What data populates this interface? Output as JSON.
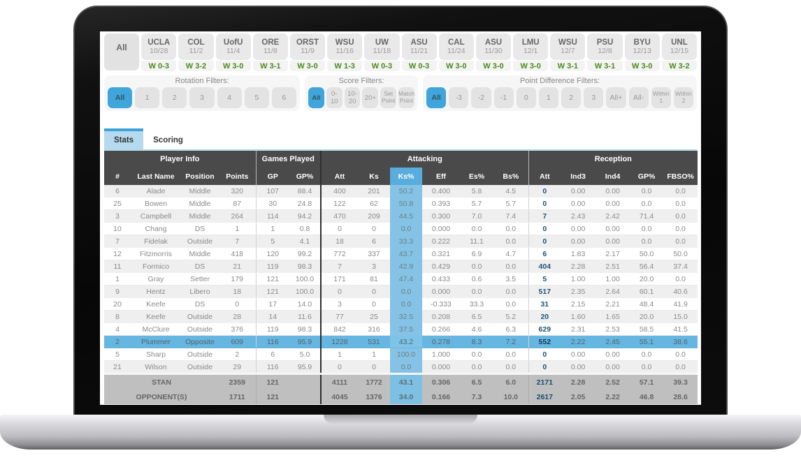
{
  "game_tabs": {
    "all_label": "All",
    "games": [
      {
        "team": "UCLA",
        "date": "10/28",
        "result": "W 0-3"
      },
      {
        "team": "COL",
        "date": "11/2",
        "result": "W 3-2"
      },
      {
        "team": "UofU",
        "date": "11/4",
        "result": "W 3-0"
      },
      {
        "team": "ORE",
        "date": "11/8",
        "result": "W 3-1"
      },
      {
        "team": "ORST",
        "date": "11/9",
        "result": "W 3-0"
      },
      {
        "team": "WSU",
        "date": "11/16",
        "result": "W 1-3"
      },
      {
        "team": "UW",
        "date": "11/18",
        "result": "W 0-3"
      },
      {
        "team": "ASU",
        "date": "11/21",
        "result": "W 0-3"
      },
      {
        "team": "CAL",
        "date": "11/24",
        "result": "W 3-0"
      },
      {
        "team": "ASU",
        "date": "11/30",
        "result": "W 3-0"
      },
      {
        "team": "LMU",
        "date": "12/1",
        "result": "W 3-0"
      },
      {
        "team": "WSU",
        "date": "12/7",
        "result": "W 3-1"
      },
      {
        "team": "PSU",
        "date": "12/8",
        "result": "W 3-1"
      },
      {
        "team": "BYU",
        "date": "12/13",
        "result": "W 3-0"
      },
      {
        "team": "UNL",
        "date": "12/15",
        "result": "W 3-2"
      }
    ]
  },
  "filters": {
    "rotation": {
      "label": "Rotation Filters:",
      "selected": "All",
      "options": [
        "All",
        "1",
        "2",
        "3",
        "4",
        "5",
        "6"
      ]
    },
    "score": {
      "label": "Score Filters:",
      "selected": "All",
      "options": [
        "All",
        "0-10",
        "10-20",
        "20+",
        "Set Point",
        "Match Point"
      ]
    },
    "point_difference": {
      "label": "Point Difference Filters:",
      "selected": "All",
      "options": [
        "All",
        "-3",
        "-2",
        "-1",
        "0",
        "1",
        "2",
        "3",
        "All+",
        "All-",
        "Within 1",
        "Within 2"
      ]
    }
  },
  "stat_tabs": [
    {
      "label": "Stats",
      "active": true
    },
    {
      "label": "Scoring",
      "active": false
    }
  ],
  "table": {
    "group_headers": [
      {
        "label": "Player Info"
      },
      {
        "label": "Games Played"
      },
      {
        "label": "Attacking"
      },
      {
        "label": "Reception"
      }
    ],
    "columns": [
      "#",
      "Last Name",
      "Position",
      "Points",
      "GP",
      "GP%",
      "Att",
      "Ks",
      "Ks%",
      "Eff",
      "Es%",
      "Bs%",
      "Att",
      "Ind3",
      "Ind4",
      "GP%",
      "FBSO%"
    ],
    "selected_column": "Ks%",
    "selected_player": "Plummer",
    "rows": [
      {
        "number": "6",
        "last_name": "Alade",
        "position": "Middle",
        "points": "320",
        "gp": "107",
        "gp_pct": "88.4",
        "attacking": [
          "400",
          "201",
          "50.2",
          "0.400",
          "5.8",
          "4.5"
        ],
        "reception": [
          "0",
          "0.00",
          "0.00",
          "0.0",
          "0.0"
        ],
        "highlighted": false
      },
      {
        "number": "25",
        "last_name": "Bowen",
        "position": "Middle",
        "points": "87",
        "gp": "30",
        "gp_pct": "24.8",
        "attacking": [
          "122",
          "62",
          "50.8",
          "0.393",
          "5.7",
          "5.7"
        ],
        "reception": [
          "0",
          "0.00",
          "0.00",
          "0.0",
          "0.0"
        ],
        "highlighted": false
      },
      {
        "number": "3",
        "last_name": "Campbell",
        "position": "Middle",
        "points": "264",
        "gp": "114",
        "gp_pct": "94.2",
        "attacking": [
          "470",
          "209",
          "44.5",
          "0.300",
          "7.0",
          "7.4"
        ],
        "reception": [
          "7",
          "2.43",
          "2.42",
          "71.4",
          "0.0"
        ],
        "highlighted": false
      },
      {
        "number": "10",
        "last_name": "Chang",
        "position": "DS",
        "points": "1",
        "gp": "1",
        "gp_pct": "0.8",
        "attacking": [
          "0",
          "0",
          "0.0",
          "0.000",
          "0.0",
          "0.0"
        ],
        "reception": [
          "0",
          "0.00",
          "0.00",
          "0.0",
          "0.0"
        ],
        "highlighted": false
      },
      {
        "number": "7",
        "last_name": "Fidelak",
        "position": "Outside",
        "points": "7",
        "gp": "5",
        "gp_pct": "4.1",
        "attacking": [
          "18",
          "6",
          "33.3",
          "0.222",
          "11.1",
          "0.0"
        ],
        "reception": [
          "0",
          "0.00",
          "0.00",
          "0.0",
          "0.0"
        ],
        "highlighted": false
      },
      {
        "number": "12",
        "last_name": "Fitzmorris",
        "position": "Middle",
        "points": "418",
        "gp": "120",
        "gp_pct": "99.2",
        "attacking": [
          "772",
          "337",
          "43.7",
          "0.321",
          "6.9",
          "4.7"
        ],
        "reception": [
          "6",
          "1.83",
          "2.17",
          "50.0",
          "50.0"
        ],
        "highlighted": false
      },
      {
        "number": "11",
        "last_name": "Formico",
        "position": "DS",
        "points": "21",
        "gp": "119",
        "gp_pct": "98.3",
        "attacking": [
          "7",
          "3",
          "42.9",
          "0.429",
          "0.0",
          "0.0"
        ],
        "reception": [
          "404",
          "2.28",
          "2.51",
          "56.4",
          "37.4"
        ],
        "highlighted": false
      },
      {
        "number": "1",
        "last_name": "Gray",
        "position": "Setter",
        "points": "179",
        "gp": "121",
        "gp_pct": "100.0",
        "attacking": [
          "171",
          "81",
          "47.4",
          "0.433",
          "0.6",
          "3.5"
        ],
        "reception": [
          "5",
          "1.00",
          "1.00",
          "20.0",
          "0.0"
        ],
        "highlighted": false
      },
      {
        "number": "9",
        "last_name": "Hentz",
        "position": "Libero",
        "points": "18",
        "gp": "121",
        "gp_pct": "100.0",
        "attacking": [
          "0",
          "0",
          "0.0",
          "0.000",
          "0.0",
          "0.0"
        ],
        "reception": [
          "517",
          "2.35",
          "2.64",
          "60.1",
          "40.6"
        ],
        "highlighted": false
      },
      {
        "number": "20",
        "last_name": "Keefe",
        "position": "DS",
        "points": "0",
        "gp": "17",
        "gp_pct": "14.0",
        "attacking": [
          "3",
          "0",
          "0.0",
          "-0.333",
          "33.3",
          "0.0"
        ],
        "reception": [
          "31",
          "2.15",
          "2.21",
          "48.4",
          "41.9"
        ],
        "highlighted": false
      },
      {
        "number": "8",
        "last_name": "Keefe",
        "position": "Outside",
        "points": "28",
        "gp": "14",
        "gp_pct": "11.6",
        "attacking": [
          "77",
          "25",
          "32.5",
          "0.208",
          "6.5",
          "5.2"
        ],
        "reception": [
          "20",
          "1.60",
          "1.65",
          "20.0",
          "15.0"
        ],
        "highlighted": false
      },
      {
        "number": "4",
        "last_name": "McClure",
        "position": "Outside",
        "points": "376",
        "gp": "119",
        "gp_pct": "98.3",
        "attacking": [
          "842",
          "316",
          "37.5",
          "0.266",
          "4.6",
          "6.3"
        ],
        "reception": [
          "629",
          "2.31",
          "2.53",
          "58.5",
          "41.5"
        ],
        "highlighted": false
      },
      {
        "number": "2",
        "last_name": "Plummer",
        "position": "Opposite",
        "points": "609",
        "gp": "116",
        "gp_pct": "95.9",
        "attacking": [
          "1228",
          "531",
          "43.2",
          "0.278",
          "8.3",
          "7.2"
        ],
        "reception": [
          "552",
          "2.22",
          "2.45",
          "55.1",
          "38.6"
        ],
        "highlighted": true
      },
      {
        "number": "5",
        "last_name": "Sharp",
        "position": "Outside",
        "points": "2",
        "gp": "6",
        "gp_pct": "5.0",
        "attacking": [
          "1",
          "1",
          "100.0",
          "1.000",
          "0.0",
          "0.0"
        ],
        "reception": [
          "0",
          "0.00",
          "0.00",
          "0.0",
          "0.0"
        ],
        "highlighted": false
      },
      {
        "number": "21",
        "last_name": "Wilson",
        "position": "Outside",
        "points": "29",
        "gp": "116",
        "gp_pct": "95.9",
        "attacking": [
          "0",
          "0",
          "0.0",
          "0.000",
          "0.0",
          "0.0"
        ],
        "reception": [
          "0",
          "0.00",
          "0.00",
          "0.0",
          "0.0"
        ],
        "highlighted": false
      }
    ],
    "totals": [
      {
        "label": "STAN",
        "points": "2359",
        "gp": "121",
        "gp_pct": "",
        "attacking": [
          "4111",
          "1772",
          "43.1",
          "0.306",
          "6.5",
          "6.0"
        ],
        "reception": [
          "2171",
          "2.28",
          "2.52",
          "57.1",
          "39.3"
        ]
      },
      {
        "label": "OPPONENT(S)",
        "points": "1711",
        "gp": "121",
        "gp_pct": "",
        "attacking": [
          "4045",
          "1376",
          "34.0",
          "0.166",
          "7.3",
          "10.0"
        ],
        "reception": [
          "2617",
          "2.05",
          "2.22",
          "46.8",
          "28.6"
        ]
      }
    ]
  },
  "colors": {
    "accent_blue": "#3fa5da",
    "selected_row_blue": "#66b6e2",
    "ks_column_blue": "#84c3e5",
    "header_dark_gray": "#4a4a4a",
    "win_green": "#4a8a1a",
    "totals_gray": "#bfbfbf",
    "reception_att_text": "#1b5673"
  }
}
